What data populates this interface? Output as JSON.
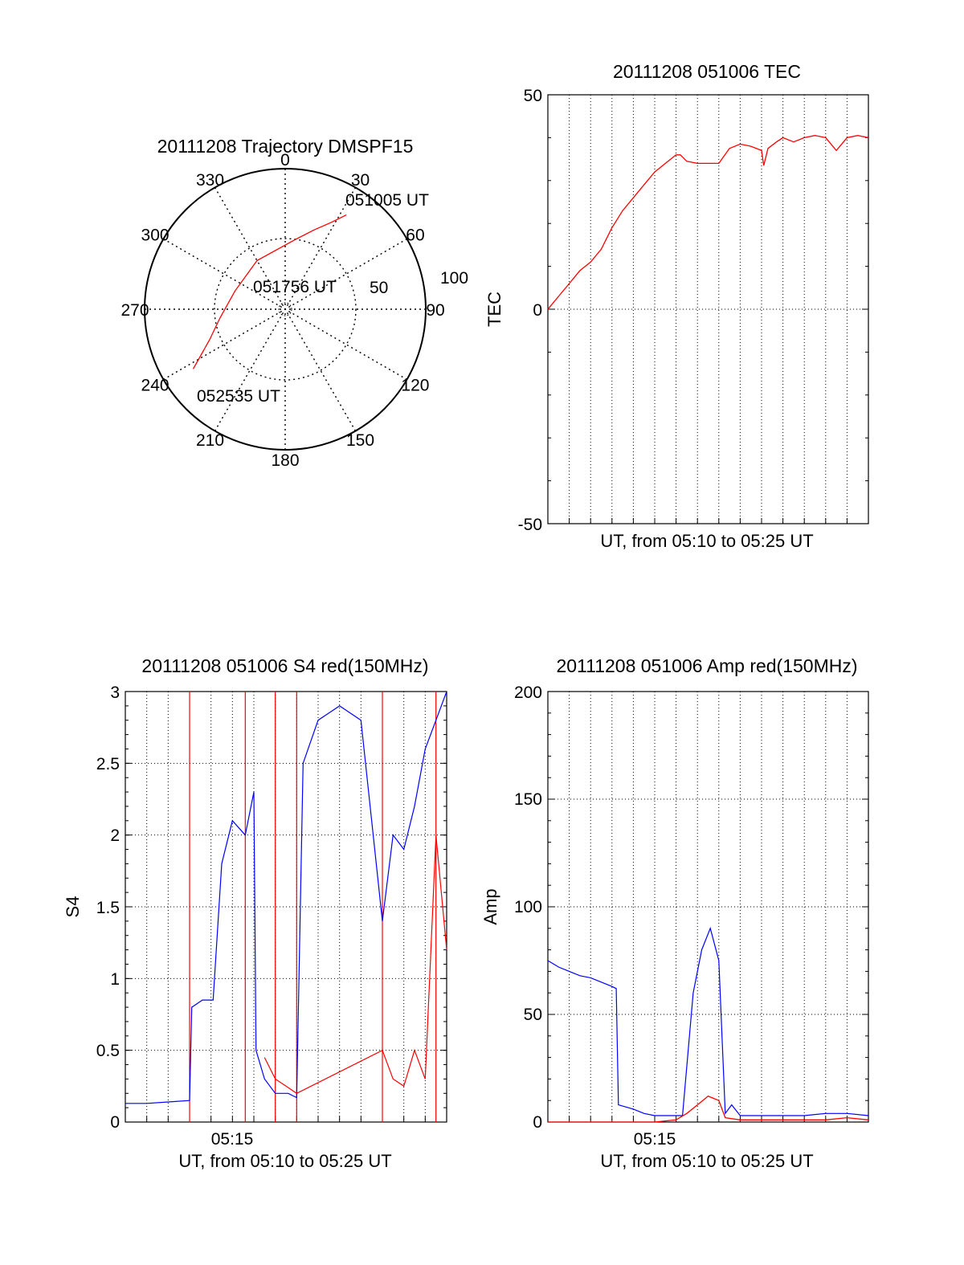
{
  "chart_data": [
    {
      "type": "polar",
      "title": "20111208 Trajectory DMSPF15",
      "rlim": [
        0,
        100
      ],
      "radial_ticks": [
        "50",
        "100"
      ],
      "angular_ticks": [
        "0",
        "30",
        "60",
        "90",
        "120",
        "150",
        "180",
        "210",
        "240",
        "270",
        "300",
        "330"
      ],
      "annotations": [
        {
          "text": "051005 UT",
          "azimuth": 33,
          "zenith": 80
        },
        {
          "text": "051756 UT",
          "azimuth": 330,
          "zenith": 13
        },
        {
          "text": "052535 UT",
          "azimuth": 237,
          "zenith": 78
        }
      ],
      "series": [
        {
          "color": "#ff0000",
          "azimuth": [
            33,
            28,
            20,
            8,
            330,
            290,
            262,
            248,
            241,
            237
          ],
          "zenith": [
            80,
            70,
            60,
            50,
            40,
            38,
            47,
            58,
            69,
            78
          ]
        }
      ],
      "grid": true
    },
    {
      "type": "line",
      "title": "20111208 051006 TEC",
      "xlabel": "UT, from 05:10 to 05:25 UT",
      "ylabel": "TEC",
      "xlim": [
        0,
        15
      ],
      "ylim": [
        -50,
        50
      ],
      "yticks": [
        "50",
        "0",
        "-50"
      ],
      "grid": true,
      "series": [
        {
          "color": "#ff0000",
          "x": [
            0,
            0.5,
            1,
            1.5,
            2,
            2.5,
            3,
            3.5,
            4,
            4.5,
            5,
            5.5,
            6,
            6.2,
            6.5,
            7,
            8,
            8.5,
            9,
            9.5,
            10,
            10.1,
            10.3,
            10.7,
            11,
            11.5,
            12,
            12.5,
            13,
            13.5,
            14,
            14.5,
            15
          ],
          "y": [
            0,
            3,
            6,
            9,
            11,
            14,
            19,
            23,
            26,
            29,
            32,
            34,
            36,
            36,
            34.5,
            34,
            34,
            37.5,
            38.5,
            38,
            37,
            33.5,
            37.5,
            39,
            40,
            39,
            40,
            40.5,
            40,
            37,
            40,
            40.5,
            40
          ]
        }
      ]
    },
    {
      "type": "line",
      "title": "20111208 051006 S4 red(150MHz)",
      "xlabel": "UT, from 05:10 to 05:25 UT",
      "ylabel": "S4",
      "xlim": [
        0,
        15
      ],
      "ylim": [
        0,
        3
      ],
      "xticks": [
        {
          "value": 5,
          "label": "05:15"
        }
      ],
      "yticks": [
        "0",
        "0.5",
        "1",
        "1.5",
        "2",
        "2.5",
        "3"
      ],
      "grid": true,
      "series": [
        {
          "color": "#0000ff",
          "x": [
            0,
            1,
            2,
            3,
            3.1,
            3.6,
            4.1,
            4.5,
            5.0,
            5.6,
            6.0,
            6.1,
            6.5,
            7,
            7.6,
            8.0,
            8.3,
            9,
            10,
            11,
            12,
            12.5,
            13,
            13.5,
            14,
            14.5,
            15
          ],
          "y": [
            0.13,
            0.13,
            0.14,
            0.15,
            0.8,
            0.85,
            0.85,
            1.8,
            2.1,
            2.0,
            2.3,
            0.5,
            0.3,
            0.2,
            0.2,
            0.17,
            2.5,
            2.8,
            2.9,
            2.8,
            1.4,
            2.0,
            1.9,
            2.2,
            2.6,
            2.8,
            3.0
          ]
        },
        {
          "color": "#ff0000",
          "x": [
            6.5,
            7,
            7.5,
            8,
            12,
            12.5,
            13,
            13.5,
            14,
            14.5,
            15
          ],
          "y": [
            0.45,
            0.3,
            0.25,
            0.2,
            0.5,
            0.3,
            0.25,
            0.5,
            0.3,
            2.0,
            1.2
          ]
        }
      ]
    },
    {
      "type": "line",
      "title": "20111208 051006 Amp red(150MHz)",
      "xlabel": "UT, from 05:10 to 05:25 UT",
      "ylabel": "Amp",
      "xlim": [
        0,
        15
      ],
      "ylim": [
        0,
        200
      ],
      "xticks": [
        {
          "value": 5,
          "label": "05:15"
        }
      ],
      "yticks": [
        "0",
        "50",
        "100",
        "150",
        "200"
      ],
      "grid": true,
      "series": [
        {
          "color": "#0000ff",
          "x": [
            0,
            0.5,
            1,
            1.5,
            2,
            2.5,
            3,
            3.2,
            3.3,
            4,
            4.5,
            5,
            5.5,
            6,
            6.3,
            6.8,
            7.2,
            7.6,
            8,
            8.3,
            8.6,
            9,
            10,
            11,
            12,
            13,
            14,
            15
          ],
          "y": [
            75,
            72,
            70,
            68,
            67,
            65,
            63,
            62,
            8,
            6,
            4,
            3,
            3,
            3,
            3,
            60,
            80,
            90,
            75,
            4,
            8,
            3,
            3,
            3,
            3,
            4,
            4,
            3
          ]
        },
        {
          "color": "#ff0000",
          "x": [
            0,
            2,
            3.2,
            5,
            6,
            6.5,
            7,
            7.5,
            8,
            8.3,
            9,
            11,
            13,
            14,
            15
          ],
          "y": [
            0,
            0,
            0,
            0,
            1,
            4,
            8,
            12,
            10,
            2,
            1,
            1,
            1,
            2,
            1
          ]
        }
      ]
    }
  ]
}
